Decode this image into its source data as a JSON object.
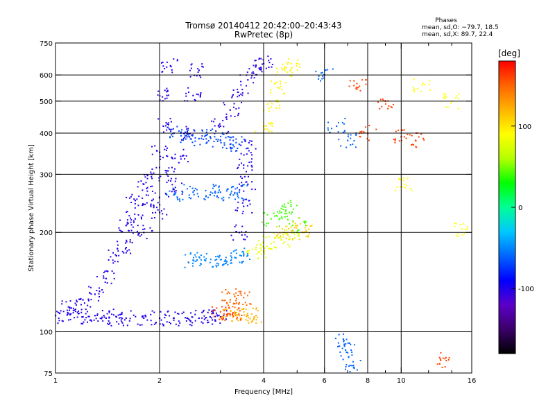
{
  "chart_data": {
    "type": "scatter",
    "title": "Tromsø 20140412 20:42:00–20:43:43",
    "subtitle": "RwPretec (8p)",
    "stats": {
      "heading": "Phases",
      "line_o": "mean, sd,O: −79.7, 18.5",
      "line_x": "mean, sd,X:  89.7, 22.4"
    },
    "xlabel": "Frequency [MHz]",
    "ylabel": "Stationary phase Virtual Height [km]",
    "xscale": "log",
    "yscale": "log",
    "xlim": [
      1,
      16
    ],
    "ylim": [
      75,
      750
    ],
    "xticks": [
      1,
      2,
      4,
      6,
      8,
      10,
      16
    ],
    "xtick_labels": [
      "1",
      "2",
      "4",
      "6",
      "8",
      "10",
      "16"
    ],
    "xgrid": [
      2,
      4,
      6,
      8,
      10
    ],
    "xminor": [
      3,
      5,
      7,
      9,
      12,
      14
    ],
    "yticks": [
      75,
      100,
      200,
      300,
      400,
      500,
      600,
      750
    ],
    "ytick_labels": [
      "75",
      "100",
      "200",
      "300",
      "400",
      "500",
      "600",
      "750"
    ],
    "ygrid": [
      100,
      200,
      300,
      400,
      500,
      600
    ],
    "grid": true,
    "colorbar": {
      "label": "[deg]",
      "range": [
        -180,
        180
      ],
      "ticks": [
        100,
        0,
        -100
      ],
      "tick_labels": [
        "100",
        "0",
        "-100"
      ],
      "colors": [
        "#000000",
        "#3a0069",
        "#5c00c8",
        "#0000ff",
        "#0064ff",
        "#00c8ff",
        "#00ff96",
        "#00ff00",
        "#b4ff00",
        "#ffff00",
        "#ffb400",
        "#ff6400",
        "#ff0000"
      ]
    },
    "series": [
      {
        "phase": -100,
        "points": [
          [
            1.0,
            112
          ],
          [
            1.1,
            113
          ],
          [
            1.2,
            111
          ],
          [
            1.3,
            112
          ],
          [
            1.4,
            110
          ],
          [
            1.5,
            111
          ],
          [
            1.6,
            110
          ],
          [
            1.8,
            110
          ],
          [
            2.0,
            110
          ],
          [
            2.2,
            110
          ],
          [
            2.4,
            110
          ],
          [
            2.6,
            110
          ],
          [
            2.8,
            111
          ],
          [
            3.0,
            111
          ]
        ]
      },
      {
        "phase": -100,
        "points": [
          [
            1.1,
            118
          ],
          [
            1.2,
            125
          ],
          [
            1.3,
            130
          ],
          [
            1.4,
            145
          ],
          [
            1.5,
            170
          ],
          [
            1.6,
            210
          ],
          [
            1.7,
            250
          ],
          [
            1.8,
            280
          ],
          [
            1.9,
            300
          ],
          [
            2.0,
            350
          ],
          [
            2.05,
            420
          ],
          [
            2.1,
            520
          ],
          [
            2.15,
            640
          ]
        ]
      },
      {
        "phase": -100,
        "points": [
          [
            1.6,
            180
          ],
          [
            1.7,
            220
          ],
          [
            1.8,
            200
          ],
          [
            1.9,
            250
          ],
          [
            2.0,
            230
          ],
          [
            2.1,
            300
          ],
          [
            2.2,
            270
          ],
          [
            2.3,
            340
          ],
          [
            2.4,
            400
          ],
          [
            2.5,
            520
          ],
          [
            2.6,
            620
          ]
        ]
      },
      {
        "phase": -70,
        "points": [
          [
            2.2,
            400
          ],
          [
            2.4,
            390
          ],
          [
            2.6,
            385
          ],
          [
            2.8,
            390
          ],
          [
            3.0,
            380
          ],
          [
            3.2,
            370
          ],
          [
            3.4,
            370
          ]
        ]
      },
      {
        "phase": -105,
        "points": [
          [
            3.0,
            420
          ],
          [
            3.2,
            470
          ],
          [
            3.4,
            520
          ],
          [
            3.6,
            580
          ],
          [
            3.8,
            640
          ],
          [
            4.0,
            650
          ]
        ]
      },
      {
        "phase": -60,
        "points": [
          [
            2.2,
            260
          ],
          [
            2.5,
            265
          ],
          [
            2.8,
            260
          ],
          [
            3.0,
            265
          ],
          [
            3.2,
            260
          ],
          [
            3.4,
            265
          ]
        ]
      },
      {
        "phase": -100,
        "points": [
          [
            3.4,
            200
          ],
          [
            3.5,
            240
          ],
          [
            3.6,
            280
          ],
          [
            3.5,
            320
          ],
          [
            3.6,
            360
          ]
        ]
      },
      {
        "phase": -50,
        "points": [
          [
            2.5,
            165
          ],
          [
            2.7,
            165
          ],
          [
            2.9,
            165
          ],
          [
            3.1,
            165
          ],
          [
            3.3,
            168
          ],
          [
            3.5,
            170
          ]
        ]
      },
      {
        "phase": 160,
        "points": [
          [
            3.0,
            115
          ],
          [
            3.2,
            113
          ],
          [
            3.3,
            114
          ]
        ]
      },
      {
        "phase": 120,
        "points": [
          [
            3.2,
            112
          ],
          [
            3.4,
            112
          ],
          [
            3.6,
            112
          ],
          [
            3.8,
            112
          ]
        ]
      },
      {
        "phase": 150,
        "points": [
          [
            3.2,
            125
          ],
          [
            3.3,
            128
          ],
          [
            3.5,
            127
          ]
        ]
      },
      {
        "phase": 80,
        "points": [
          [
            3.8,
            180
          ],
          [
            4.0,
            175
          ],
          [
            4.2,
            185
          ],
          [
            4.5,
            190
          ],
          [
            4.8,
            200
          ]
        ]
      },
      {
        "phase": 40,
        "points": [
          [
            4.2,
            220
          ],
          [
            4.5,
            230
          ],
          [
            4.8,
            240
          ],
          [
            5.0,
            210
          ]
        ]
      },
      {
        "phase": 95,
        "points": [
          [
            4.0,
            420
          ],
          [
            4.2,
            480
          ],
          [
            4.4,
            550
          ],
          [
            4.6,
            620
          ],
          [
            4.8,
            650
          ]
        ]
      },
      {
        "phase": 110,
        "points": [
          [
            4.6,
            200
          ],
          [
            5.0,
            210
          ],
          [
            5.2,
            200
          ]
        ]
      },
      {
        "phase": -60,
        "points": [
          [
            6.0,
            600
          ],
          [
            6.5,
            420
          ],
          [
            7.0,
            380
          ],
          [
            6.8,
            95
          ],
          [
            6.9,
            88
          ],
          [
            7.2,
            79
          ]
        ]
      },
      {
        "phase": 160,
        "points": [
          [
            7.5,
            550
          ],
          [
            8.0,
            400
          ],
          [
            9.0,
            500
          ],
          [
            10.0,
            390
          ],
          [
            11.0,
            380
          ],
          [
            13.0,
            82
          ]
        ]
      },
      {
        "phase": 90,
        "points": [
          [
            10.2,
            280
          ],
          [
            11.5,
            560
          ],
          [
            14.0,
            500
          ],
          [
            15.0,
            205
          ]
        ]
      }
    ]
  }
}
